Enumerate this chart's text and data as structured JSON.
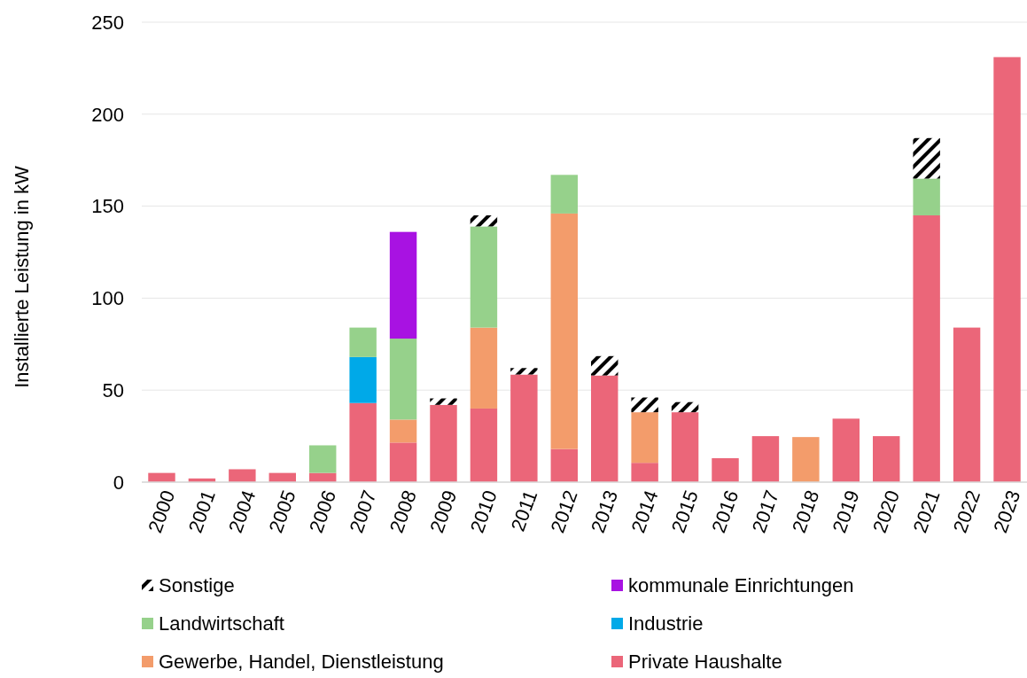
{
  "chart_data": {
    "type": "bar",
    "stacked": true,
    "ylabel": "Installierte Leistung in kW",
    "categories": [
      "2000",
      "2001",
      "2004",
      "2005",
      "2006",
      "2007",
      "2008",
      "2009",
      "2010",
      "2011",
      "2012",
      "2013",
      "2014",
      "2015",
      "2016",
      "2017",
      "2018",
      "2019",
      "2020",
      "2021",
      "2022",
      "2023"
    ],
    "series": [
      {
        "name": "Private Haushalte",
        "color": "#eb6679",
        "values": [
          5,
          2,
          7,
          5,
          5,
          43,
          21.5,
          42,
          40,
          58.5,
          18,
          58,
          10.5,
          38,
          13,
          25,
          null,
          34.5,
          25,
          145,
          84,
          231
        ]
      },
      {
        "name": "Gewerbe, Handel, Dienstleistung",
        "color": "#f39c6b",
        "values": [
          null,
          null,
          null,
          null,
          null,
          null,
          12.5,
          null,
          44,
          null,
          128,
          null,
          27.5,
          null,
          null,
          null,
          24.5,
          null,
          null,
          null,
          null,
          null
        ]
      },
      {
        "name": "Industrie",
        "color": "#00a9e8",
        "values": [
          null,
          null,
          null,
          null,
          null,
          25,
          null,
          null,
          null,
          null,
          null,
          null,
          null,
          null,
          null,
          null,
          null,
          null,
          null,
          null,
          null,
          null
        ]
      },
      {
        "name": "Landwirtschaft",
        "color": "#96d18b",
        "values": [
          null,
          null,
          null,
          null,
          15,
          16,
          44,
          null,
          55,
          null,
          21,
          null,
          null,
          null,
          null,
          null,
          null,
          null,
          null,
          20,
          null,
          null
        ]
      },
      {
        "name": "kommunale Einrichtungen",
        "color": "#a812e2",
        "values": [
          null,
          null,
          null,
          null,
          null,
          null,
          58,
          null,
          null,
          null,
          null,
          null,
          null,
          null,
          null,
          null,
          null,
          null,
          null,
          null,
          null,
          null
        ]
      },
      {
        "name": "Sonstige",
        "color": "#000000",
        "values": [
          null,
          null,
          null,
          null,
          null,
          null,
          null,
          3.5,
          6,
          3.5,
          null,
          10.5,
          8,
          5.5,
          null,
          null,
          null,
          null,
          null,
          22,
          null,
          null
        ]
      }
    ],
    "ylim": [
      0,
      250
    ],
    "yticks": [
      0,
      50,
      100,
      150,
      200,
      250
    ],
    "grid": "y",
    "legend": "bottom"
  }
}
